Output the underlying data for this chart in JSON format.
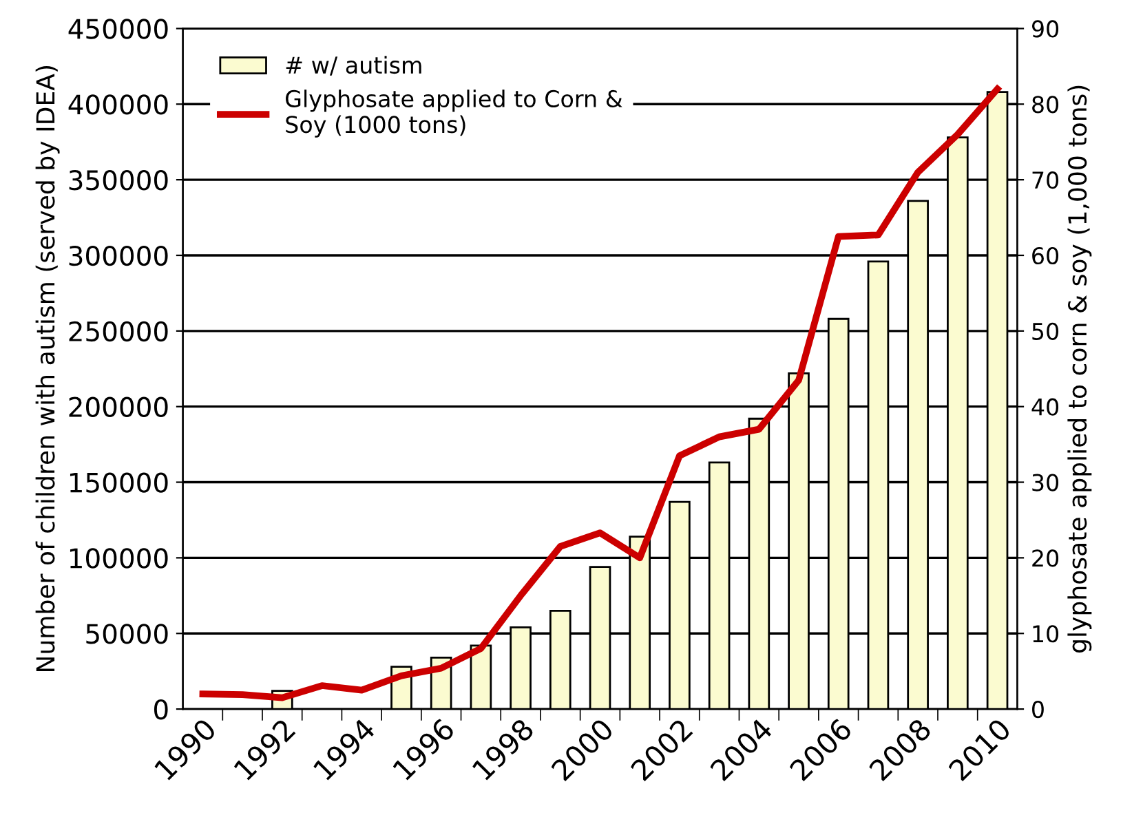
{
  "chart_data": {
    "type": "bar",
    "categories": [
      "1990",
      null,
      "1992",
      null,
      "1994",
      null,
      "1996",
      null,
      "1998",
      null,
      "2000",
      null,
      "2002",
      null,
      "2004",
      null,
      "2006",
      null,
      "2008",
      null,
      "2010"
    ],
    "ylabel": "Number of children with autism (served by IDEA)",
    "y2label": "glyphosate applied to corn & soy (1,000 tons)",
    "ylim": [
      0,
      450000
    ],
    "yticks": [
      0,
      50000,
      100000,
      150000,
      200000,
      250000,
      300000,
      350000,
      400000,
      450000
    ],
    "y2lim": [
      0,
      90
    ],
    "y2ticks": [
      0,
      10,
      20,
      30,
      40,
      50,
      60,
      70,
      80,
      90
    ],
    "grid": "y",
    "legend": "top left",
    "series": [
      {
        "name": "# w/ autism",
        "color": "#fbfbd0",
        "values": [
          null,
          null,
          12000,
          null,
          null,
          28000,
          34000,
          42000,
          54000,
          65000,
          94000,
          114000,
          137000,
          163000,
          192000,
          222000,
          258000,
          296000,
          336000,
          378000,
          408000
        ]
      },
      {
        "name": "Glyphosate applied to Corn & Soy (1000 tons)",
        "type": "line",
        "axis": "y2",
        "color": "#cc0000",
        "values": [
          2.0,
          1.9,
          1.5,
          3.1,
          2.5,
          4.4,
          5.4,
          8.0,
          15,
          21.5,
          23.3,
          20,
          33.5,
          36,
          37,
          43.5,
          62.5,
          62.7,
          71,
          76,
          82
        ]
      }
    ]
  }
}
